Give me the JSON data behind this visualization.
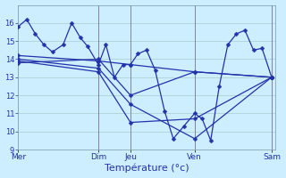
{
  "title": "Température (°c)",
  "bg_color": "#cceeff",
  "grid_color": "#aacccc",
  "line_color": "#2233aa",
  "markersize": 2.5,
  "linewidth": 0.9,
  "ylim": [
    9,
    17
  ],
  "yticks": [
    9,
    10,
    11,
    12,
    13,
    14,
    15,
    16
  ],
  "xlim": [
    0,
    240
  ],
  "vlines": [
    75,
    105,
    165,
    237
  ],
  "xtick_pos": [
    0,
    75,
    105,
    165,
    237
  ],
  "xtick_labels": [
    "Mer",
    "Dim",
    "Jeu",
    "Ven",
    "Sam"
  ],
  "series": [
    {
      "x": [
        0,
        8,
        16,
        24,
        32,
        42,
        50,
        58,
        65,
        75,
        82,
        90,
        98,
        105,
        112,
        120,
        128,
        137,
        145,
        155,
        165,
        172,
        180,
        188,
        196,
        204,
        212,
        220,
        228,
        237
      ],
      "y": [
        15.8,
        16.2,
        15.4,
        14.8,
        14.4,
        14.8,
        16.0,
        15.2,
        14.7,
        13.7,
        14.8,
        13.0,
        13.7,
        13.7,
        14.3,
        14.5,
        13.4,
        11.1,
        9.6,
        10.3,
        11.0,
        10.7,
        9.5,
        12.5,
        14.8,
        15.4,
        15.6,
        14.5,
        14.6,
        13.0
      ]
    },
    {
      "x": [
        0,
        75,
        105,
        165,
        237
      ],
      "y": [
        14.2,
        13.9,
        13.7,
        13.3,
        13.0
      ]
    },
    {
      "x": [
        0,
        75,
        105,
        165,
        237
      ],
      "y": [
        14.0,
        13.5,
        11.5,
        9.6,
        13.0
      ]
    },
    {
      "x": [
        0,
        75,
        105,
        165,
        237
      ],
      "y": [
        13.9,
        13.3,
        10.5,
        10.7,
        13.0
      ]
    },
    {
      "x": [
        0,
        75,
        105,
        165,
        237
      ],
      "y": [
        13.8,
        14.0,
        12.0,
        13.3,
        13.0
      ]
    }
  ]
}
